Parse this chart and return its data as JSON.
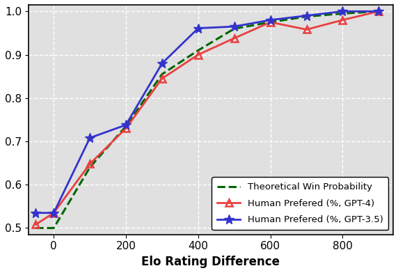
{
  "gpt4_x": [
    -50,
    0,
    100,
    200,
    300,
    400,
    500,
    600,
    700,
    800,
    900
  ],
  "gpt4_y": [
    0.508,
    0.535,
    0.648,
    0.73,
    0.845,
    0.9,
    0.938,
    0.975,
    0.958,
    0.98,
    1.0
  ],
  "gpt35_x": [
    -50,
    0,
    100,
    200,
    300,
    400,
    500,
    600,
    700,
    800,
    900
  ],
  "gpt35_y": [
    0.535,
    0.535,
    0.708,
    0.738,
    0.88,
    0.961,
    0.965,
    0.98,
    0.99,
    1.0,
    1.0
  ],
  "theoretical_x": [
    -50,
    0,
    100,
    200,
    300,
    400,
    500,
    600,
    700,
    800,
    900
  ],
  "theoretical_y": [
    0.5,
    0.5,
    0.64,
    0.735,
    0.855,
    0.91,
    0.96,
    0.975,
    0.988,
    0.995,
    1.0
  ],
  "xlabel": "Elo Rating Difference",
  "xlim": [
    -70,
    940
  ],
  "ylim": [
    0.485,
    1.015
  ],
  "yticks": [
    0.5,
    0.6,
    0.7,
    0.8,
    0.9,
    1.0
  ],
  "xticks": [
    0,
    200,
    400,
    600,
    800
  ],
  "gpt4_color": "#E84040",
  "gpt35_color": "#3333CC",
  "theoretical_color": "#006600",
  "background_color": "#E0E0E0",
  "legend_labels": [
    "Human Prefered (%, GPT-4)",
    "Human Prefered (%, GPT-3.5)",
    "Theoretical Win Probability"
  ],
  "xlabel_fontsize": 12,
  "tick_fontsize": 11,
  "legend_fontsize": 9.5
}
